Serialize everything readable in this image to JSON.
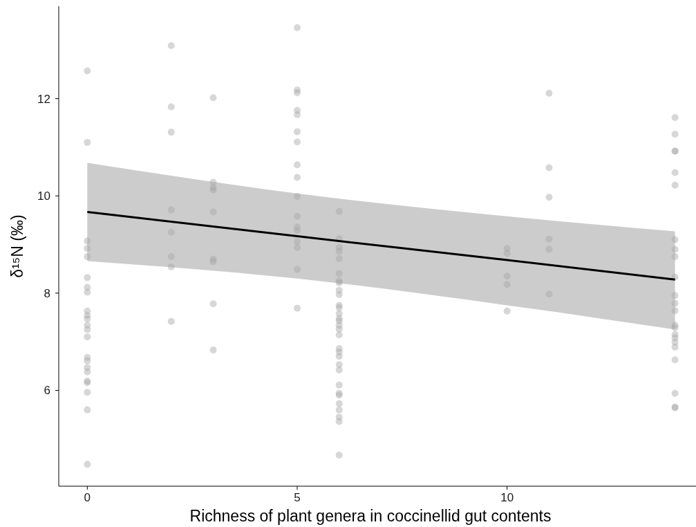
{
  "chart_data": {
    "type": "scatter",
    "xlabel": "Richness of plant genera in coccinellid gut contents",
    "ylabel": "δ¹⁵N (‰)",
    "xlim": [
      -0.68,
      14.5
    ],
    "ylim": [
      4.03,
      13.9
    ],
    "xticks": [
      0,
      5,
      10
    ],
    "yticks": [
      6,
      8,
      10,
      12
    ],
    "grid": false,
    "series": [
      {
        "marker": "circle",
        "color": "#a6a6a6",
        "x": [
          0,
          0,
          0,
          0,
          0,
          0,
          0,
          0,
          0,
          0,
          0,
          0,
          0,
          0,
          0,
          0,
          0,
          0,
          0,
          0,
          0,
          0,
          0,
          2,
          2,
          2,
          2,
          2,
          2,
          2,
          2,
          3,
          3,
          3,
          3,
          3,
          3,
          3,
          3,
          3,
          5,
          5,
          5,
          5,
          5,
          5,
          5,
          5,
          5,
          5,
          5,
          5,
          5,
          5,
          5,
          5,
          5,
          6,
          6,
          6,
          6,
          6,
          6,
          6,
          6,
          6,
          6,
          6,
          6,
          6,
          6,
          6,
          6,
          6,
          6,
          6,
          6,
          6,
          6,
          6,
          6,
          6,
          6,
          6,
          6,
          6,
          6,
          6,
          10,
          10,
          10,
          10,
          10,
          11,
          11,
          11,
          11,
          11,
          11,
          14,
          14,
          14,
          14,
          14,
          14,
          14,
          14,
          14,
          14,
          14,
          14,
          14,
          14,
          14,
          14,
          14,
          14,
          14,
          14,
          14,
          14,
          14
        ],
        "values": [
          12.57,
          11.1,
          9.07,
          8.92,
          8.75,
          8.32,
          8.12,
          8.02,
          7.63,
          7.54,
          7.47,
          7.34,
          7.25,
          7.1,
          6.68,
          6.61,
          6.47,
          6.38,
          6.19,
          6.16,
          5.96,
          5.6,
          4.48,
          13.09,
          11.83,
          11.31,
          9.71,
          9.25,
          8.75,
          8.54,
          7.42,
          12.02,
          10.28,
          10.17,
          10.12,
          9.67,
          8.7,
          8.65,
          7.78,
          6.83,
          13.46,
          12.18,
          12.12,
          11.76,
          11.67,
          11.32,
          11.11,
          10.64,
          10.38,
          9.99,
          9.58,
          9.36,
          9.29,
          9.06,
          8.94,
          8.49,
          7.69,
          9.68,
          9.12,
          8.94,
          8.86,
          8.71,
          8.4,
          8.25,
          8.21,
          8.06,
          7.97,
          7.75,
          7.7,
          7.58,
          7.48,
          7.43,
          7.34,
          7.26,
          7.14,
          6.86,
          6.79,
          6.7,
          6.53,
          6.42,
          6.11,
          5.94,
          5.9,
          5.73,
          5.6,
          5.45,
          5.36,
          4.67,
          8.92,
          8.82,
          8.35,
          8.18,
          7.63,
          12.11,
          10.58,
          9.97,
          9.11,
          8.9,
          7.98,
          11.61,
          11.27,
          10.92,
          10.92,
          10.48,
          10.22,
          9.1,
          8.9,
          8.75,
          8.33,
          7.95,
          7.79,
          7.64,
          7.34,
          7.29,
          7.15,
          7.08,
          6.99,
          6.89,
          6.63,
          5.94,
          5.66,
          5.64
        ]
      },
      {
        "type": "line",
        "color": "#000000",
        "x": [
          0,
          5,
          10,
          14
        ],
        "values": [
          9.67,
          9.17,
          8.68,
          8.28
        ],
        "lower": [
          8.66,
          8.3,
          7.75,
          7.25
        ],
        "upper": [
          10.68,
          10.05,
          9.58,
          9.27
        ]
      }
    ]
  }
}
